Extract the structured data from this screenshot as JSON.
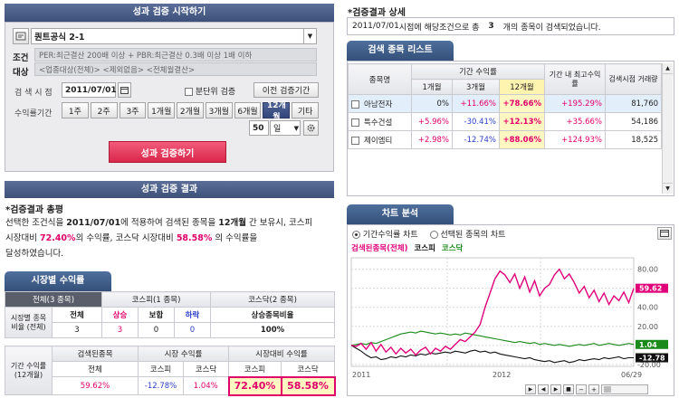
{
  "start_panel": {
    "header": "성과 검증 시작하기",
    "formula_select": "퀀트공식 2-1",
    "cond_label_1": "조건",
    "cond_label_2": "대상",
    "cond_text_1": "PER:최근결산 200배 이상 + PBR:최근결산 0.3배 이상 1배 이하",
    "cond_text_2": "<업종대상(전체)> <제외없음> <전체월결산>",
    "date_label": "검 색 시 점",
    "date_value": "2011/07/01",
    "split_label": "분단위 검증",
    "prev_button": "이전 검증기간",
    "period_label": "수익률기간",
    "periods": [
      "1주",
      "2주",
      "3주",
      "1개월",
      "2개월",
      "3개월",
      "6개월",
      "12개월",
      "기타"
    ],
    "selected_period": "12개월",
    "days_value": "50",
    "days_unit": "일",
    "run_button": "성과 검증하기"
  },
  "result_panel": {
    "header": "성과 검증 결과",
    "summary_title": "*검증결과 총평",
    "summary": {
      "p1": "선택한 조건식을 ",
      "date": "2011/07/01",
      "p2": "에 적용하여 검색된 종목을 ",
      "period": "12개월",
      "p3": " 간 보유시, 코스피",
      "p4": "시장대비 ",
      "kospi_pct": "72.40%",
      "p5": "의 수익률, 코스닥 시장대비 ",
      "kosdaq_pct": "58.58%",
      "p6": " 의 수익률을",
      "p7": "달성하였습니다."
    },
    "tab": "시장별 수익률",
    "market_tabs": [
      "전체(3 종목)",
      "코스피(1 종목)",
      "코스닥(2 종목)"
    ],
    "ratio_row_label": "시장별 종목비율 (전체)",
    "ratio_headers": [
      "전체",
      "상승",
      "보합",
      "하락",
      "상승종목비율"
    ],
    "ratio_values": [
      "3",
      "3",
      "0",
      "0",
      "100%"
    ],
    "period_row_label": "기간 수익률 (12개월)",
    "group_headers": [
      "검색된종목",
      "시장 수익률",
      "시장대비 수익률"
    ],
    "sub_headers": [
      "전체",
      "코스피",
      "코스닥",
      "코스피",
      "코스닥"
    ],
    "period_values": [
      "59.62%",
      "-12.78%",
      "1.04%",
      "72.40%",
      "58.58%"
    ]
  },
  "detail_panel": {
    "title": "*검증결과 상세",
    "info": {
      "date": "2011/07/01",
      "p1": " 시점에 해당조건으로 총",
      "count": "3",
      "p2": "개의 종목이 검색되었습니다."
    },
    "list_tab": "검색 종목 리스트",
    "col_name": "종목명",
    "col_period_group": "기간 수익률",
    "col_periods": [
      "1개월",
      "3개월",
      "12개월"
    ],
    "col_max": "기간 내 최고수익률",
    "col_price": "검색시점 거래량",
    "rows": [
      {
        "name": "아남전자",
        "m1": "0%",
        "m3": "+11.66%",
        "m12": "+78.66%",
        "max": "+195.29%",
        "vol": "81,760"
      },
      {
        "name": "특수건설",
        "m1": "+5.96%",
        "m3": "-30.41%",
        "m12": "+12.13%",
        "max": "+35.66%",
        "vol": "54,186"
      },
      {
        "name": "제이엠티",
        "m1": "+2.98%",
        "m3": "-12.74%",
        "m12": "+88.06%",
        "max": "+124.93%",
        "vol": "18,525"
      }
    ]
  },
  "chart_panel": {
    "tab": "차트 분석",
    "radio_1": "기간수익률 차트",
    "radio_2": "선택된 종목의 차트",
    "legend": [
      "검색된종목(전체)",
      "코스피",
      "코스닥"
    ],
    "colors": {
      "stocks": "#e0007a",
      "kospi": "#111111",
      "kosdaq": "#1a8a1a"
    },
    "end_labels": {
      "stocks": "59.62",
      "kosdaq": "1.04",
      "kospi": "-12.78"
    },
    "y_ticks": [
      "80.00",
      "60.00",
      "40.00",
      "20.00",
      "0.00",
      "-20.00"
    ],
    "x_labels": [
      "2011",
      "2012",
      "06/29"
    ]
  },
  "chart_data": {
    "type": "line",
    "title": "",
    "y_ticks": [
      80,
      60,
      40,
      20,
      0,
      -20
    ],
    "ylim": [
      -22,
      92
    ],
    "x_labels": [
      "2011",
      "2012",
      "06/29"
    ],
    "series": [
      {
        "name": "검색된종목(전체)",
        "values": [
          0,
          -1,
          2,
          -4,
          3,
          -6,
          1,
          -7,
          -2,
          -9,
          -3,
          -8,
          -4,
          -10,
          -5,
          -2,
          -9,
          -3,
          -6,
          -1,
          -4,
          1,
          6,
          4,
          9,
          14,
          22,
          40,
          55,
          70,
          78,
          74,
          66,
          75,
          60,
          72,
          56,
          68,
          52,
          60,
          64,
          74,
          80,
          70,
          75,
          66,
          55,
          62,
          50,
          58,
          46,
          55,
          43,
          52,
          47,
          56,
          45,
          60
        ]
      },
      {
        "name": "코스피",
        "values": [
          0,
          -3,
          -6,
          -10,
          -13,
          -12,
          -15,
          -14,
          -12,
          -13,
          -11,
          -12,
          -10,
          -11,
          -9,
          -10,
          -8,
          -9,
          -8,
          -7,
          -8,
          -6,
          -7,
          -8,
          -6,
          -5,
          -7,
          -6,
          -8,
          -7,
          -9,
          -10,
          -11,
          -12,
          -13,
          -14,
          -13,
          -15,
          -16,
          -17,
          -16,
          -18,
          -17,
          -16,
          -18,
          -17,
          -15,
          -16,
          -15,
          -14,
          -15,
          -13,
          -14,
          -13,
          -12,
          -14,
          -13,
          -13
        ]
      },
      {
        "name": "코스닥",
        "values": [
          0,
          1,
          2,
          1,
          3,
          2,
          4,
          6,
          8,
          10,
          12,
          13,
          14,
          13,
          15,
          14,
          13,
          12,
          13,
          12,
          11,
          12,
          11,
          13,
          12,
          11,
          10,
          9,
          8,
          7,
          6,
          5,
          4,
          3,
          4,
          3,
          2,
          3,
          1,
          2,
          1,
          0,
          1,
          0,
          -1,
          0,
          1,
          0,
          1,
          2,
          0,
          1,
          2,
          1,
          0,
          1,
          2,
          1
        ]
      }
    ]
  }
}
